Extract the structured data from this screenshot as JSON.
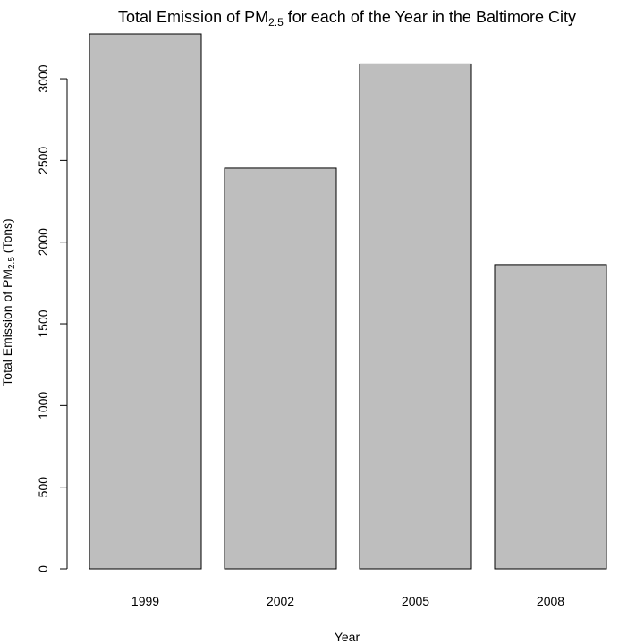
{
  "chart_data": {
    "type": "bar",
    "title_main": "Total Emission of PM",
    "title_sub": "2.5",
    "title_rest": " for each of the Year in the Baltimore City",
    "xlabel": "Year",
    "ylabel_main": "Total Emission of PM",
    "ylabel_sub": "2.5",
    "ylabel_rest": " (Tons)",
    "categories": [
      "1999",
      "2002",
      "2005",
      "2008"
    ],
    "values": [
      3274,
      2453,
      3091,
      1862
    ],
    "ylim": [
      0,
      3274
    ],
    "yticks": [
      0,
      500,
      1000,
      1500,
      2000,
      2500,
      3000
    ],
    "grid": false,
    "bar_color": "#bebebe"
  }
}
